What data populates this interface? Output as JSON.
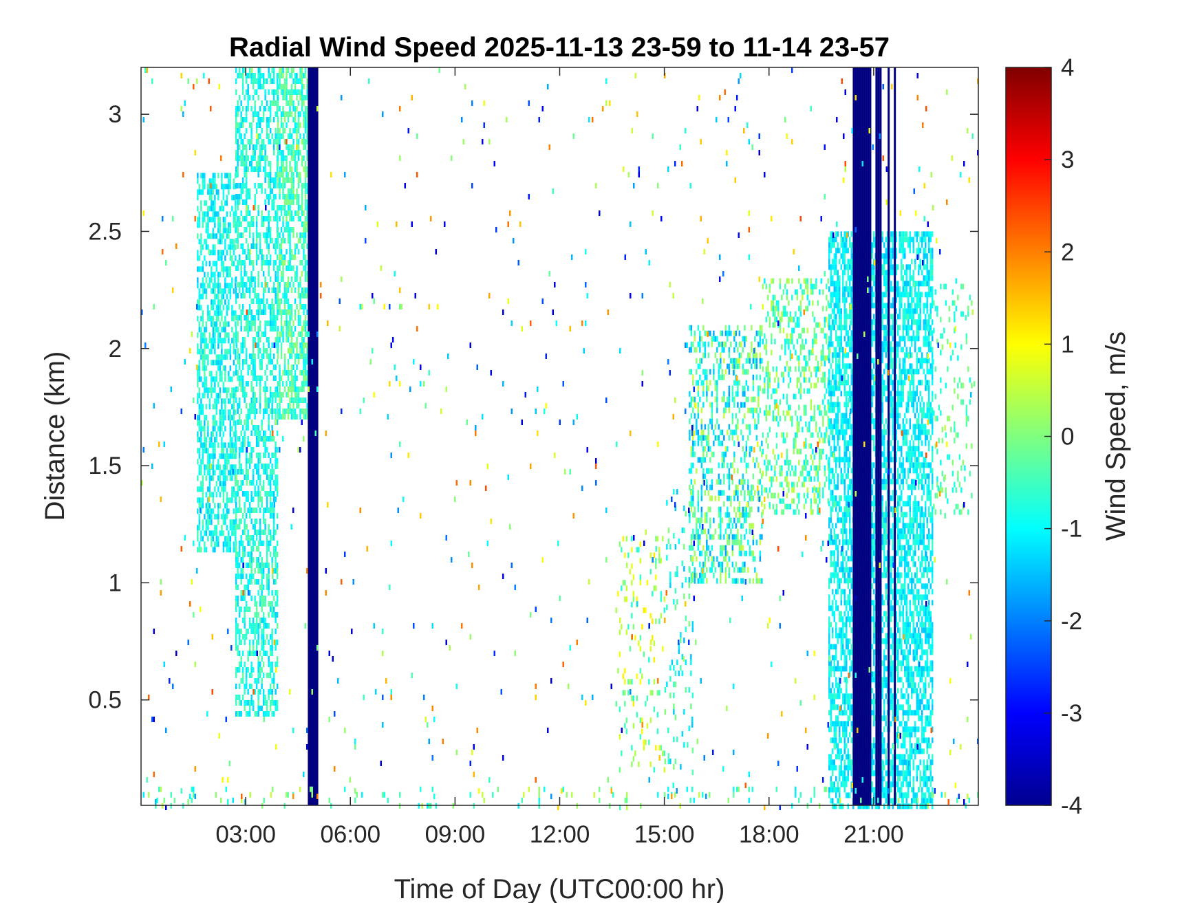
{
  "chart_data": {
    "type": "heatmap",
    "title": "Radial Wind Speed 2025-11-13 23-59 to 11-14 23-57",
    "xlabel": "Time of Day (UTC00:00 hr)",
    "ylabel": "Distance (km)",
    "colorbar_label": "Wind Speed, m/s",
    "xlim": [
      0,
      24
    ],
    "ylim": [
      0.05,
      3.2
    ],
    "clim": [
      -4,
      4
    ],
    "colormap": "jet",
    "xticks": [
      3,
      6,
      9,
      12,
      15,
      18,
      21
    ],
    "xtick_labels": [
      "03:00",
      "06:00",
      "09:00",
      "12:00",
      "15:00",
      "18:00",
      "21:00"
    ],
    "yticks": [
      0.5,
      1,
      1.5,
      2,
      2.5,
      3
    ],
    "ytick_labels": [
      "0.5",
      "1",
      "1.5",
      "2",
      "2.5",
      "3"
    ],
    "cticks": [
      -4,
      -3,
      -2,
      -1,
      0,
      1,
      2,
      3,
      4
    ],
    "ctick_labels": [
      "-4",
      "-3",
      "-2",
      "-1",
      "0",
      "1",
      "2",
      "3",
      "4"
    ],
    "grid": false,
    "regions": [
      {
        "t0": 1.6,
        "t1": 2.7,
        "d0": 1.15,
        "d1": 2.75,
        "v": -0.9,
        "spread": 0.6,
        "density": 0.55
      },
      {
        "t0": 2.7,
        "t1": 3.9,
        "d0": 0.45,
        "d1": 3.2,
        "v": -0.8,
        "spread": 0.6,
        "density": 0.5
      },
      {
        "t0": 3.9,
        "t1": 4.75,
        "d0": 1.7,
        "d1": 3.2,
        "v": -0.5,
        "spread": 0.7,
        "density": 0.6
      },
      {
        "t0": 4.78,
        "t1": 5.08,
        "d0": 0.05,
        "d1": 3.2,
        "v": -4,
        "spread": 0,
        "density": 1
      },
      {
        "t0": 13.6,
        "t1": 15.0,
        "d0": 0.2,
        "d1": 1.2,
        "v": 0.2,
        "spread": 1.0,
        "density": 0.12
      },
      {
        "t0": 15.0,
        "t1": 15.8,
        "d0": 0.2,
        "d1": 1.4,
        "v": -0.7,
        "spread": 0.8,
        "density": 0.12
      },
      {
        "t0": 15.7,
        "t1": 17.8,
        "d0": 1.0,
        "d1": 2.1,
        "v": -0.6,
        "spread": 1.2,
        "density": 0.35
      },
      {
        "t0": 17.8,
        "t1": 19.7,
        "d0": 1.3,
        "d1": 2.3,
        "v": -0.3,
        "spread": 0.9,
        "density": 0.3
      },
      {
        "t0": 19.7,
        "t1": 22.7,
        "d0": 0.05,
        "d1": 2.5,
        "v": -1.0,
        "spread": 0.5,
        "density": 0.6
      },
      {
        "t0": 22.7,
        "t1": 23.8,
        "d0": 1.3,
        "d1": 2.3,
        "v": -0.4,
        "spread": 0.6,
        "density": 0.12
      },
      {
        "t0": 20.4,
        "t1": 20.9,
        "d0": 0.05,
        "d1": 3.2,
        "v": -4,
        "spread": 0,
        "density": 0.9
      },
      {
        "t0": 21.05,
        "t1": 21.2,
        "d0": 0.05,
        "d1": 3.2,
        "v": -4,
        "spread": 0,
        "density": 0.9
      },
      {
        "t0": 21.4,
        "t1": 21.6,
        "d0": 0.05,
        "d1": 3.2,
        "v": -4,
        "spread": 0,
        "density": 0.9
      },
      {
        "t0": 0.0,
        "t1": 24.0,
        "d0": 0.05,
        "d1": 0.13,
        "v": -0.3,
        "spread": 0.9,
        "density": 0.07
      },
      {
        "t0": 0.0,
        "t1": 24.0,
        "d0": 0.05,
        "d1": 3.2,
        "v": -0.5,
        "spread": 3,
        "density": 0.012
      }
    ]
  }
}
